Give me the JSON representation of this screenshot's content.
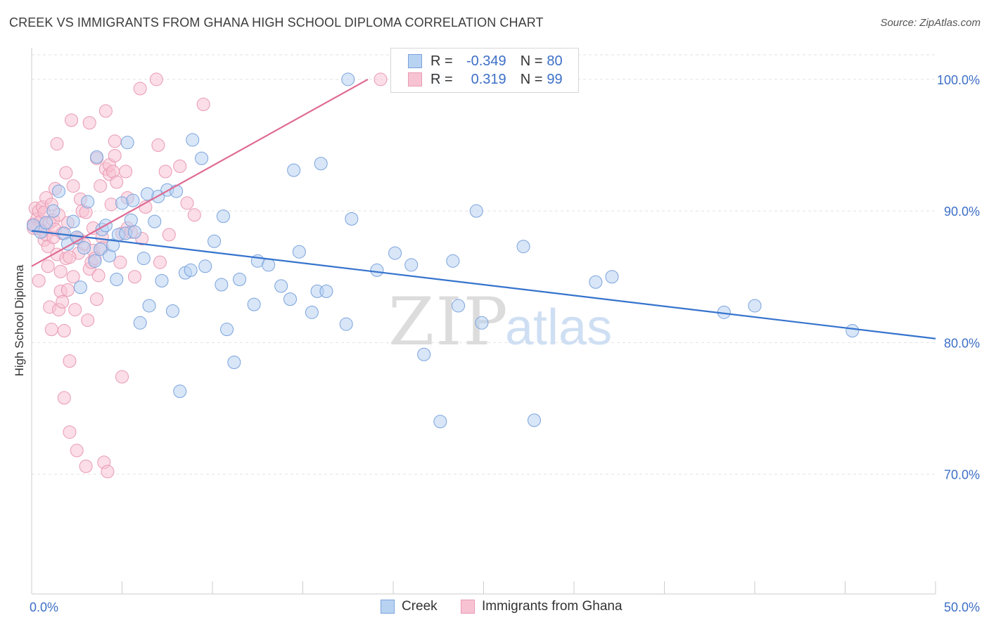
{
  "header": {
    "title": "CREEK VS IMMIGRANTS FROM GHANA HIGH SCHOOL DIPLOMA CORRELATION CHART",
    "source": "Source: ZipAtlas.com"
  },
  "watermark": {
    "zip": "ZIP",
    "atlas": "atlas"
  },
  "legend": {
    "creek": {
      "r_label": "R =",
      "r_value": "-0.349",
      "n_label": "N =",
      "n_value": "80"
    },
    "ghana": {
      "r_label": "R =",
      "r_value": "0.319",
      "n_label": "N =",
      "n_value": "99"
    }
  },
  "colors": {
    "creek_fill": "#b8d2f2",
    "creek_stroke": "#7aa3dc",
    "creek_line": "#3573cd",
    "ghana_fill": "#f7c3d3",
    "ghana_stroke": "#e99ab4",
    "ghana_line": "#df6b93",
    "tick_label": "#3d6fc6",
    "grid": "#e2e2e2"
  },
  "chart_data": {
    "type": "scatter",
    "title": "CREEK VS IMMIGRANTS FROM GHANA HIGH SCHOOL DIPLOMA CORRELATION CHART",
    "xlabel": "",
    "ylabel": "High School Diploma",
    "xlim": [
      0,
      50
    ],
    "ylim": [
      60.9,
      102.4
    ],
    "y_ticks": [
      70,
      80,
      90,
      100
    ],
    "y_tick_labels": [
      "70.0%",
      "80.0%",
      "90.0%",
      "100.0%"
    ],
    "x_tick_labels": [
      "0.0%",
      "50.0%"
    ],
    "grid": true,
    "legend_position": "top-center",
    "series": [
      {
        "name": "Creek",
        "r": -0.349,
        "n": 80,
        "trend": {
          "x": [
            0,
            50
          ],
          "y": [
            88.5,
            80.3
          ]
        },
        "points": [
          [
            0.1,
            88.9
          ],
          [
            0.5,
            88.4
          ],
          [
            0.8,
            89.1
          ],
          [
            1.2,
            90.0
          ],
          [
            1.5,
            91.5
          ],
          [
            1.8,
            88.3
          ],
          [
            2.0,
            87.5
          ],
          [
            2.3,
            89.2
          ],
          [
            2.5,
            88.0
          ],
          [
            2.7,
            84.2
          ],
          [
            2.9,
            87.2
          ],
          [
            3.1,
            90.7
          ],
          [
            3.5,
            86.2
          ],
          [
            3.6,
            94.1
          ],
          [
            3.8,
            87.1
          ],
          [
            3.9,
            88.6
          ],
          [
            4.1,
            88.9
          ],
          [
            4.3,
            86.6
          ],
          [
            4.5,
            87.4
          ],
          [
            4.7,
            84.8
          ],
          [
            4.8,
            88.2
          ],
          [
            5.0,
            90.6
          ],
          [
            5.2,
            88.3
          ],
          [
            5.3,
            95.2
          ],
          [
            5.5,
            89.3
          ],
          [
            5.6,
            90.8
          ],
          [
            5.7,
            88.4
          ],
          [
            6.0,
            81.5
          ],
          [
            6.2,
            86.4
          ],
          [
            6.4,
            91.3
          ],
          [
            6.5,
            82.8
          ],
          [
            6.8,
            89.2
          ],
          [
            7.0,
            91.1
          ],
          [
            7.2,
            84.7
          ],
          [
            7.5,
            91.6
          ],
          [
            7.8,
            82.4
          ],
          [
            8.0,
            91.5
          ],
          [
            8.2,
            76.3
          ],
          [
            8.5,
            85.3
          ],
          [
            8.8,
            85.5
          ],
          [
            8.9,
            95.4
          ],
          [
            9.4,
            94.0
          ],
          [
            9.6,
            85.8
          ],
          [
            10.1,
            87.7
          ],
          [
            10.5,
            84.4
          ],
          [
            10.6,
            89.6
          ],
          [
            10.8,
            81.0
          ],
          [
            11.2,
            78.5
          ],
          [
            11.5,
            84.8
          ],
          [
            12.3,
            82.9
          ],
          [
            12.5,
            86.2
          ],
          [
            13.1,
            85.9
          ],
          [
            13.8,
            84.3
          ],
          [
            14.3,
            83.3
          ],
          [
            14.5,
            93.1
          ],
          [
            14.8,
            86.9
          ],
          [
            15.5,
            82.3
          ],
          [
            15.8,
            83.9
          ],
          [
            16.0,
            93.6
          ],
          [
            16.3,
            83.9
          ],
          [
            17.4,
            81.4
          ],
          [
            17.7,
            89.4
          ],
          [
            17.5,
            100.0
          ],
          [
            19.1,
            85.5
          ],
          [
            20.1,
            86.8
          ],
          [
            21.0,
            85.9
          ],
          [
            21.7,
            79.1
          ],
          [
            22.5,
            100.0
          ],
          [
            22.6,
            74.0
          ],
          [
            23.3,
            86.2
          ],
          [
            23.6,
            82.8
          ],
          [
            24.6,
            90.0
          ],
          [
            24.9,
            81.5
          ],
          [
            27.2,
            87.3
          ],
          [
            27.8,
            74.1
          ],
          [
            31.2,
            84.6
          ],
          [
            32.1,
            85.0
          ],
          [
            38.3,
            82.3
          ],
          [
            40.0,
            82.8
          ],
          [
            45.4,
            80.9
          ]
        ]
      },
      {
        "name": "Immigrants from Ghana",
        "r": 0.319,
        "n": 99,
        "trend": {
          "x": [
            0,
            18.6
          ],
          "y": [
            85.8,
            100.0
          ]
        },
        "points": [
          [
            0.1,
            89.0
          ],
          [
            0.2,
            90.2
          ],
          [
            0.3,
            88.7
          ],
          [
            0.3,
            89.4
          ],
          [
            0.4,
            90.0
          ],
          [
            0.4,
            84.7
          ],
          [
            0.5,
            89.2
          ],
          [
            0.6,
            90.3
          ],
          [
            0.6,
            88.5
          ],
          [
            0.7,
            89.9
          ],
          [
            0.7,
            87.8
          ],
          [
            0.8,
            88.2
          ],
          [
            0.8,
            91.0
          ],
          [
            0.9,
            85.8
          ],
          [
            0.9,
            87.3
          ],
          [
            1.0,
            89.1
          ],
          [
            1.0,
            82.7
          ],
          [
            1.1,
            81.0
          ],
          [
            1.1,
            90.5
          ],
          [
            1.2,
            88.0
          ],
          [
            1.2,
            89.3
          ],
          [
            1.3,
            91.7
          ],
          [
            1.3,
            88.6
          ],
          [
            1.4,
            95.1
          ],
          [
            1.4,
            86.7
          ],
          [
            1.5,
            82.5
          ],
          [
            1.5,
            89.7
          ],
          [
            1.6,
            85.4
          ],
          [
            1.6,
            83.9
          ],
          [
            1.7,
            88.3
          ],
          [
            1.7,
            83.1
          ],
          [
            1.8,
            80.9
          ],
          [
            1.8,
            75.8
          ],
          [
            1.9,
            86.4
          ],
          [
            1.9,
            92.9
          ],
          [
            2.0,
            89.1
          ],
          [
            2.0,
            84.0
          ],
          [
            2.1,
            73.2
          ],
          [
            2.1,
            78.6
          ],
          [
            2.2,
            96.9
          ],
          [
            2.3,
            91.9
          ],
          [
            2.3,
            85.0
          ],
          [
            2.4,
            82.5
          ],
          [
            2.5,
            88.0
          ],
          [
            2.5,
            71.8
          ],
          [
            2.6,
            86.8
          ],
          [
            2.6,
            87.9
          ],
          [
            2.7,
            90.9
          ],
          [
            2.8,
            90.0
          ],
          [
            2.9,
            87.5
          ],
          [
            3.0,
            70.6
          ],
          [
            3.0,
            89.9
          ],
          [
            3.1,
            81.7
          ],
          [
            3.2,
            85.6
          ],
          [
            3.2,
            96.7
          ],
          [
            3.3,
            86.1
          ],
          [
            3.4,
            87.0
          ],
          [
            3.5,
            86.4
          ],
          [
            3.6,
            94.0
          ],
          [
            3.6,
            83.3
          ],
          [
            3.7,
            85.1
          ],
          [
            3.8,
            91.9
          ],
          [
            3.9,
            88.0
          ],
          [
            3.9,
            87.2
          ],
          [
            4.0,
            70.9
          ],
          [
            4.1,
            97.6
          ],
          [
            4.1,
            93.2
          ],
          [
            4.2,
            70.2
          ],
          [
            4.3,
            92.8
          ],
          [
            4.3,
            93.5
          ],
          [
            4.4,
            90.5
          ],
          [
            4.5,
            93.0
          ],
          [
            4.6,
            95.3
          ],
          [
            4.6,
            94.2
          ],
          [
            4.7,
            92.2
          ],
          [
            4.9,
            86.1
          ],
          [
            5.0,
            88.3
          ],
          [
            5.0,
            77.4
          ],
          [
            5.2,
            93.0
          ],
          [
            5.3,
            88.7
          ],
          [
            5.3,
            91.0
          ],
          [
            5.5,
            88.4
          ],
          [
            5.7,
            85.0
          ],
          [
            6.0,
            99.3
          ],
          [
            6.1,
            87.9
          ],
          [
            6.3,
            90.3
          ],
          [
            6.9,
            100.0
          ],
          [
            7.0,
            95.0
          ],
          [
            7.1,
            86.1
          ],
          [
            7.4,
            93.0
          ],
          [
            7.6,
            88.2
          ],
          [
            8.2,
            93.4
          ],
          [
            8.6,
            90.6
          ],
          [
            9.5,
            98.1
          ],
          [
            9.0,
            89.7
          ],
          [
            19.3,
            100.0
          ],
          [
            0.1,
            88.7
          ],
          [
            2.1,
            86.5
          ],
          [
            3.4,
            88.7
          ]
        ]
      }
    ]
  },
  "bottom_legend": {
    "creek_label": "Creek",
    "ghana_label": "Immigrants from Ghana"
  }
}
